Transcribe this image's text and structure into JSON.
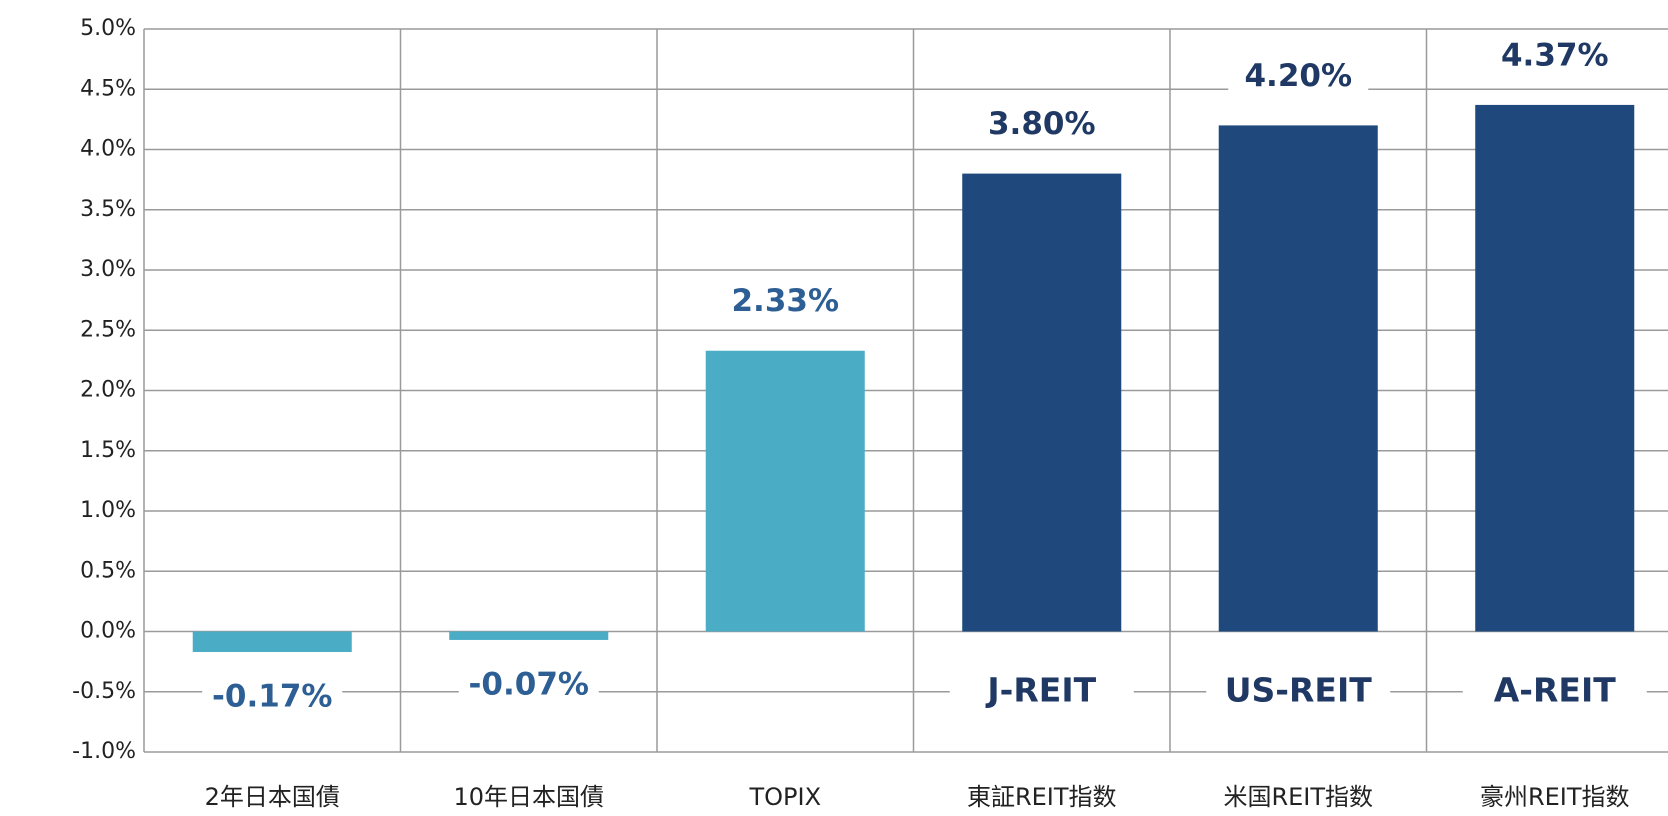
{
  "chart_data": {
    "type": "bar",
    "categories": [
      "2年日本国債",
      "10年日本国債",
      "TOPIX",
      "東証REIT指数",
      "米国REIT指数",
      "豪州REIT指数"
    ],
    "values": [
      -0.17,
      -0.07,
      2.33,
      3.8,
      4.2,
      4.37
    ],
    "value_labels": [
      "-0.17%",
      "-0.07%",
      "2.33%",
      "3.80%",
      "4.20%",
      "4.37%"
    ],
    "colors": [
      "#4bacc6",
      "#4bacc6",
      "#4bacc6",
      "#1f497d",
      "#1f497d",
      "#1f497d"
    ],
    "label_colors": [
      "#2e5f94",
      "#2e5f94",
      "#2e5f94",
      "#1f3864",
      "#1f3864",
      "#1f3864"
    ],
    "annotations": [
      null,
      null,
      null,
      "J-REIT",
      "US-REIT",
      "A-REIT"
    ],
    "ylim": [
      -1.0,
      5.0
    ],
    "yticks": [
      {
        "value": -1.0,
        "label": "-1.0%"
      },
      {
        "value": -0.5,
        "label": "-0.5%"
      },
      {
        "value": 0.0,
        "label": "0.0%"
      },
      {
        "value": 0.5,
        "label": "0.5%"
      },
      {
        "value": 1.0,
        "label": "1.0%"
      },
      {
        "value": 1.5,
        "label": "1.5%"
      },
      {
        "value": 2.0,
        "label": "2.0%"
      },
      {
        "value": 2.5,
        "label": "2.5%"
      },
      {
        "value": 3.0,
        "label": "3.0%"
      },
      {
        "value": 3.5,
        "label": "3.5%"
      },
      {
        "value": 4.0,
        "label": "4.0%"
      },
      {
        "value": 4.5,
        "label": "4.5%"
      },
      {
        "value": 5.0,
        "label": "5.0%"
      }
    ],
    "grid": true
  }
}
